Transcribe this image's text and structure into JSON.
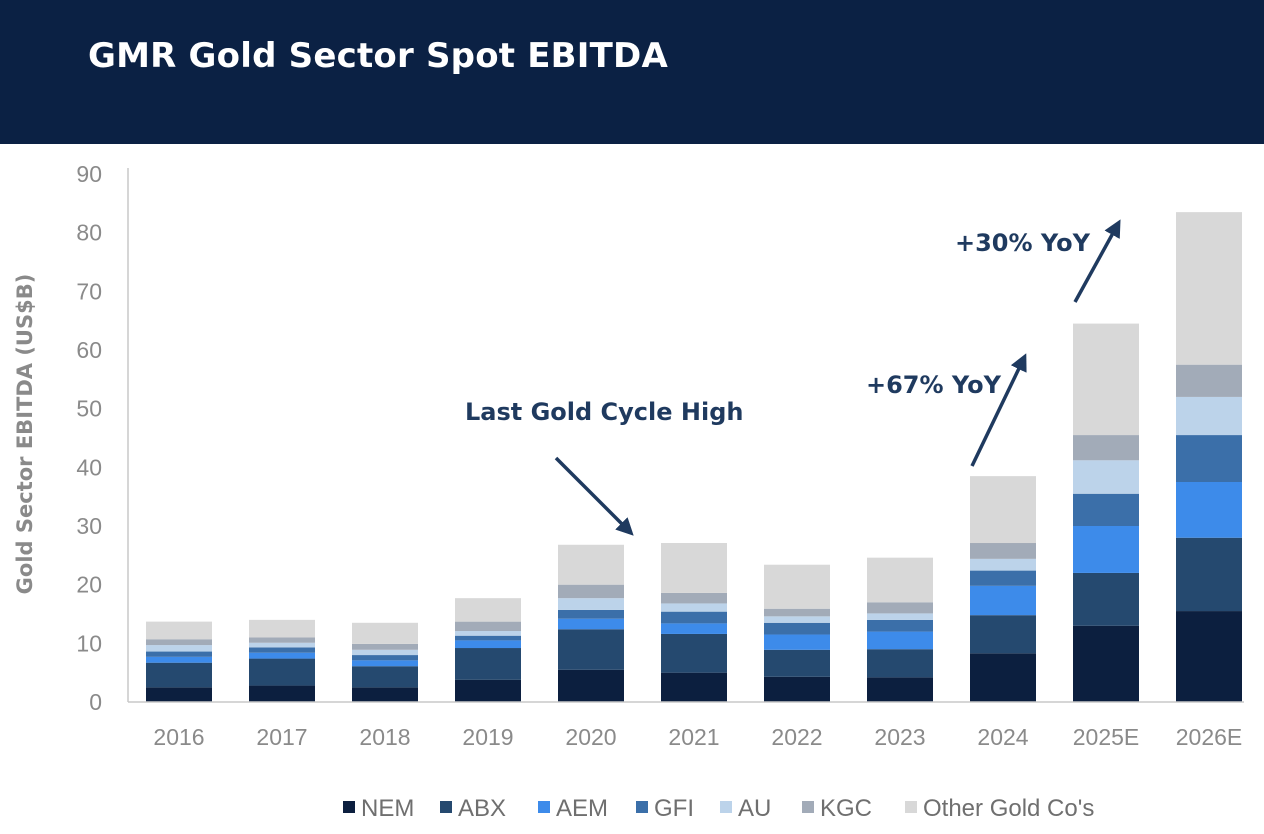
{
  "header": {
    "title": "GMR Gold Sector Spot EBITDA"
  },
  "chart_data": {
    "type": "bar",
    "stacked": true,
    "title": "GMR Gold Sector Spot EBITDA",
    "xlabel": "",
    "ylabel": "Gold Sector EBITDA (US$B)",
    "ylim": [
      0,
      90
    ],
    "yticks": [
      0,
      10,
      20,
      30,
      40,
      50,
      60,
      70,
      80,
      90
    ],
    "categories": [
      "2016",
      "2017",
      "2018",
      "2019",
      "2020",
      "2021",
      "2022",
      "2023",
      "2024",
      "2025E",
      "2026E"
    ],
    "series": [
      {
        "name": "NEM",
        "color": "#0c1f3f",
        "values": [
          2.5,
          2.8,
          2.5,
          3.8,
          5.5,
          5.0,
          4.3,
          4.2,
          8.3,
          13.0,
          15.5
        ]
      },
      {
        "name": "ABX",
        "color": "#25496f",
        "values": [
          4.2,
          4.6,
          3.6,
          5.4,
          6.9,
          6.6,
          4.6,
          4.8,
          6.5,
          9.0,
          12.5
        ]
      },
      {
        "name": "AEM",
        "color": "#3d8bea",
        "values": [
          1.0,
          1.0,
          1.0,
          1.3,
          1.8,
          1.8,
          2.6,
          3.0,
          5.0,
          8.0,
          9.5
        ]
      },
      {
        "name": "GFI",
        "color": "#3b6fa9",
        "values": [
          0.9,
          0.9,
          0.9,
          0.8,
          1.5,
          2.0,
          2.0,
          2.0,
          2.6,
          5.5,
          8.0
        ]
      },
      {
        "name": "AU",
        "color": "#bcd3ea",
        "values": [
          1.1,
          0.8,
          0.9,
          0.8,
          2.0,
          1.4,
          1.1,
          1.1,
          2.0,
          5.7,
          6.5
        ]
      },
      {
        "name": "KGC",
        "color": "#a2abb8",
        "values": [
          1.0,
          0.9,
          1.0,
          1.6,
          2.3,
          1.8,
          1.3,
          1.9,
          2.7,
          4.3,
          5.5
        ]
      },
      {
        "name": "Other Gold Co's",
        "color": "#d8d8d8",
        "values": [
          3.0,
          3.0,
          3.6,
          4.0,
          6.8,
          8.5,
          7.5,
          7.6,
          11.4,
          19.0,
          26.0
        ]
      }
    ],
    "annotations": [
      {
        "text": "Last Gold Cycle High",
        "near": "2020-2021"
      },
      {
        "text": "+67% YoY",
        "near": "2024 to 2025E"
      },
      {
        "text": "+30% YoY",
        "near": "2025E to 2026E"
      }
    ],
    "legend_position": "bottom"
  }
}
